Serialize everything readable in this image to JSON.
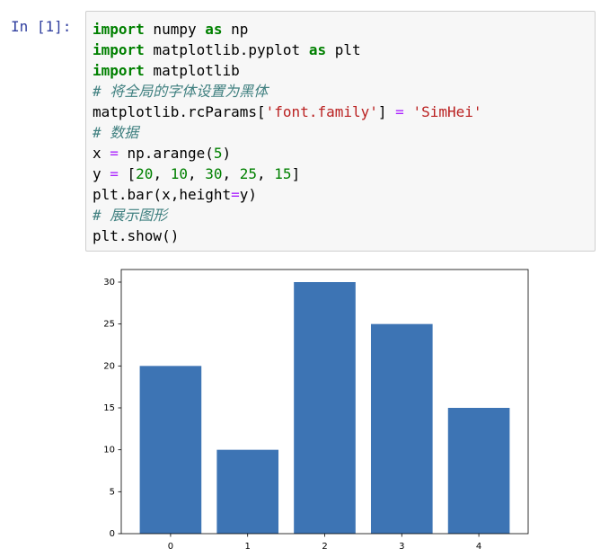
{
  "cell": {
    "prompt": "In  [1]:",
    "code": [
      [
        {
          "text": "import",
          "color": "#008000",
          "bold": true
        },
        {
          "text": " numpy "
        },
        {
          "text": "as",
          "color": "#008000",
          "bold": true
        },
        {
          "text": " np"
        }
      ],
      [
        {
          "text": "import",
          "color": "#008000",
          "bold": true
        },
        {
          "text": " matplotlib.pyplot "
        },
        {
          "text": "as",
          "color": "#008000",
          "bold": true
        },
        {
          "text": " plt"
        }
      ],
      [
        {
          "text": "import",
          "color": "#008000",
          "bold": true
        },
        {
          "text": " matplotlib"
        }
      ],
      [
        {
          "text": "# 将全局的字体设置为黑体",
          "color": "#408080",
          "italic": true
        }
      ],
      [
        {
          "text": "matplotlib.rcParams["
        },
        {
          "text": "'font.family'",
          "color": "#BA2121"
        },
        {
          "text": "] "
        },
        {
          "text": "=",
          "color": "#AA22FF"
        },
        {
          "text": " "
        },
        {
          "text": "'SimHei'",
          "color": "#BA2121"
        }
      ],
      [
        {
          "text": "# 数据",
          "color": "#408080",
          "italic": true
        }
      ],
      [
        {
          "text": "x "
        },
        {
          "text": "=",
          "color": "#AA22FF"
        },
        {
          "text": " np.arange("
        },
        {
          "text": "5",
          "color": "#008000"
        },
        {
          "text": ")"
        }
      ],
      [
        {
          "text": "y "
        },
        {
          "text": "=",
          "color": "#AA22FF"
        },
        {
          "text": " ["
        },
        {
          "text": "20",
          "color": "#008000"
        },
        {
          "text": ", "
        },
        {
          "text": "10",
          "color": "#008000"
        },
        {
          "text": ", "
        },
        {
          "text": "30",
          "color": "#008000"
        },
        {
          "text": ", "
        },
        {
          "text": "25",
          "color": "#008000"
        },
        {
          "text": ", "
        },
        {
          "text": "15",
          "color": "#008000"
        },
        {
          "text": "]"
        }
      ],
      [
        {
          "text": "plt.bar(x,height"
        },
        {
          "text": "=",
          "color": "#AA22FF"
        },
        {
          "text": "y)"
        }
      ],
      [
        {
          "text": "# 展示图形",
          "color": "#408080",
          "italic": true
        }
      ],
      [
        {
          "text": "plt.show()"
        }
      ]
    ]
  },
  "chart_data": {
    "type": "bar",
    "x": [
      0,
      1,
      2,
      3,
      4
    ],
    "values": [
      20,
      10,
      30,
      25,
      15
    ],
    "color": "#3d74b4",
    "xlim": [
      -0.64,
      4.64
    ],
    "xticks": [
      0,
      1,
      2,
      3,
      4
    ],
    "ylim": [
      0,
      31.5
    ],
    "yticks": [
      0,
      5,
      10,
      15,
      20,
      25,
      30
    ]
  }
}
